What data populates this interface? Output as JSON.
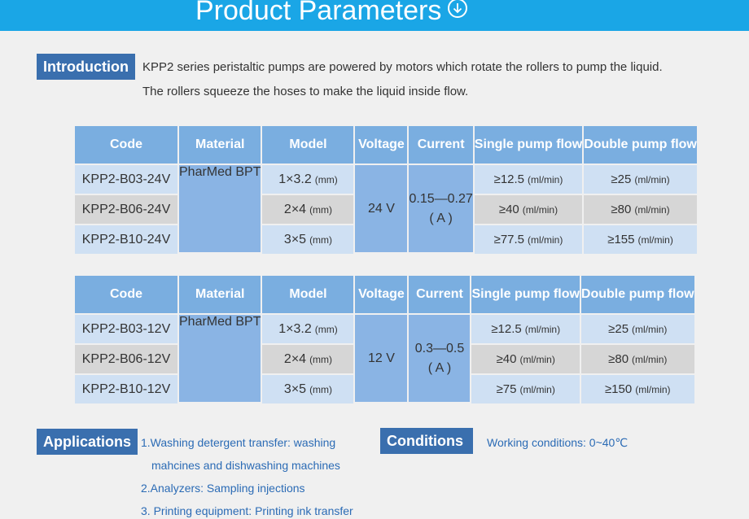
{
  "banner": {
    "title": "Product Parameters"
  },
  "intro": {
    "tag": "Introduction",
    "line1": "KPP2 series peristaltic pumps are powered by motors which rotate the rollers to pump the liquid.",
    "line2": "The rollers squeeze the hoses to make the liquid inside flow."
  },
  "table_headers": [
    "Code",
    "Material",
    "Model",
    "Voltage",
    "Current",
    "Single pump flow",
    "Double pump flow"
  ],
  "table1": {
    "material": "PharMed BPT",
    "voltage": "24 V",
    "current": "0.15—0.27",
    "current_unit": "( A )",
    "rows": [
      {
        "code": "KPP2-B03-24V",
        "model": "1×3.2",
        "model_unit": "(mm)",
        "single": "≥12.5",
        "single_unit": "(ml/min)",
        "double": "≥25",
        "double_unit": "(ml/min)"
      },
      {
        "code": "KPP2-B06-24V",
        "model": "2×4",
        "model_unit": "(mm)",
        "single": "≥40",
        "single_unit": "(ml/min)",
        "double": "≥80",
        "double_unit": "(ml/min)"
      },
      {
        "code": "KPP2-B10-24V",
        "model": "3×5",
        "model_unit": "(mm)",
        "single": "≥77.5",
        "single_unit": "(ml/min)",
        "double": "≥155",
        "double_unit": "(ml/min)"
      }
    ]
  },
  "table2": {
    "material": "PharMed BPT",
    "voltage": "12 V",
    "current": "0.3—0.5",
    "current_unit": "( A )",
    "rows": [
      {
        "code": "KPP2-B03-12V",
        "model": "1×3.2",
        "model_unit": "(mm)",
        "single": "≥12.5",
        "single_unit": "(ml/min)",
        "double": "≥25",
        "double_unit": "(ml/min)"
      },
      {
        "code": "KPP2-B06-12V",
        "model": "2×4",
        "model_unit": "(mm)",
        "single": "≥40",
        "single_unit": "(ml/min)",
        "double": "≥80",
        "double_unit": "(ml/min)"
      },
      {
        "code": "KPP2-B10-12V",
        "model": "3×5",
        "model_unit": "(mm)",
        "single": "≥75",
        "single_unit": "(ml/min)",
        "double": "≥150",
        "double_unit": "(ml/min)"
      }
    ]
  },
  "applications": {
    "tag": "Applications",
    "items": [
      "1.Washing detergent transfer: washing",
      "mahcines and dishwashing machines",
      "2.Analyzers: Sampling injections",
      "3. Printing equipment: Printing ink transfer"
    ]
  },
  "conditions": {
    "tag": "Conditions",
    "text": "Working conditions: 0~40℃"
  }
}
